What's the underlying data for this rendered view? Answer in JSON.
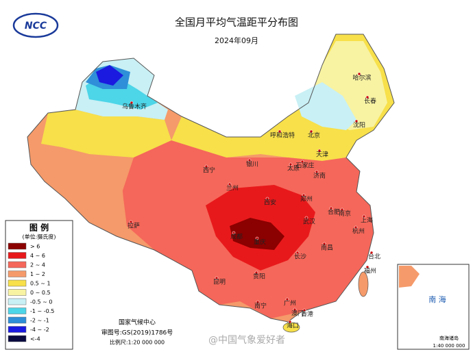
{
  "logo": "NCC",
  "header": {
    "title": "全国月平均气温距平分布图",
    "date": "2024年09月"
  },
  "legend": {
    "title": "图 例",
    "unit": "(单位:摄氏度)",
    "items": [
      {
        "label": "> 6",
        "color": "#8b0000"
      },
      {
        "label": "4 ~ 6",
        "color": "#e8191b"
      },
      {
        "label": "2 ~ 4",
        "color": "#f5675a"
      },
      {
        "label": "1 ~ 2",
        "color": "#f59a6a"
      },
      {
        "label": "0.5 ~ 1",
        "color": "#f7e04a"
      },
      {
        "label": "0 ~ 0.5",
        "color": "#f8f3a2"
      },
      {
        "label": "-0.5 ~ 0",
        "color": "#c8f0f5"
      },
      {
        "label": "-1 ~ -0.5",
        "color": "#4dd5e8"
      },
      {
        "label": "-2 ~ -1",
        "color": "#2f8fd8"
      },
      {
        "label": "-4 ~ -2",
        "color": "#1a1ae0"
      },
      {
        "label": "<-4",
        "color": "#0a0a40"
      }
    ]
  },
  "cities": [
    "乌鲁木齐",
    "哈尔滨",
    "长春",
    "沈阳",
    "呼和浩特",
    "北京",
    "天津",
    "石家庄",
    "太原",
    "济南",
    "银川",
    "西宁",
    "兰州",
    "郑州",
    "西安",
    "合肥",
    "南京",
    "上海",
    "杭州",
    "武汉",
    "成都",
    "重庆",
    "长沙",
    "南昌",
    "福州",
    "台北",
    "贵阳",
    "昆明",
    "南宁",
    "广州",
    "香港",
    "澳门",
    "海口",
    "拉萨"
  ],
  "footer": {
    "org": "国家气候中心",
    "approval": "审图号:GS(2019)1786号",
    "scale": "比例尺:1:20 000 000"
  },
  "inset": {
    "sea": "南 海",
    "title": "南海诸岛",
    "scale": "1:40 000 000"
  },
  "watermark": "@中国气象爱好者"
}
